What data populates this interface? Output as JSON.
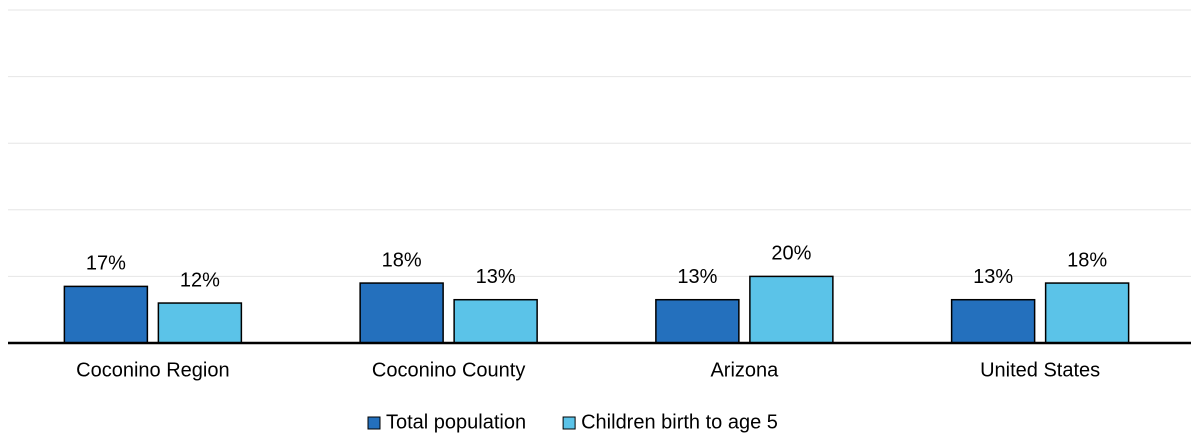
{
  "chart_data": {
    "type": "bar",
    "categories": [
      "Coconino Region",
      "Coconino County",
      "Arizona",
      "United States"
    ],
    "series": [
      {
        "name": "Total population",
        "color": "#2470bd",
        "values": [
          17,
          18,
          13,
          13
        ],
        "value_labels": [
          "17%",
          "18%",
          "13%",
          "13%"
        ]
      },
      {
        "name": "Children birth to age 5",
        "color": "#5bc3e8",
        "values": [
          12,
          13,
          20,
          18
        ],
        "value_labels": [
          "12%",
          "13%",
          "20%",
          "18%"
        ]
      }
    ],
    "ylim": [
      0,
      100
    ],
    "yticks": [
      0,
      20,
      40,
      60,
      80,
      100
    ],
    "grid": true,
    "legend": "bottom"
  }
}
